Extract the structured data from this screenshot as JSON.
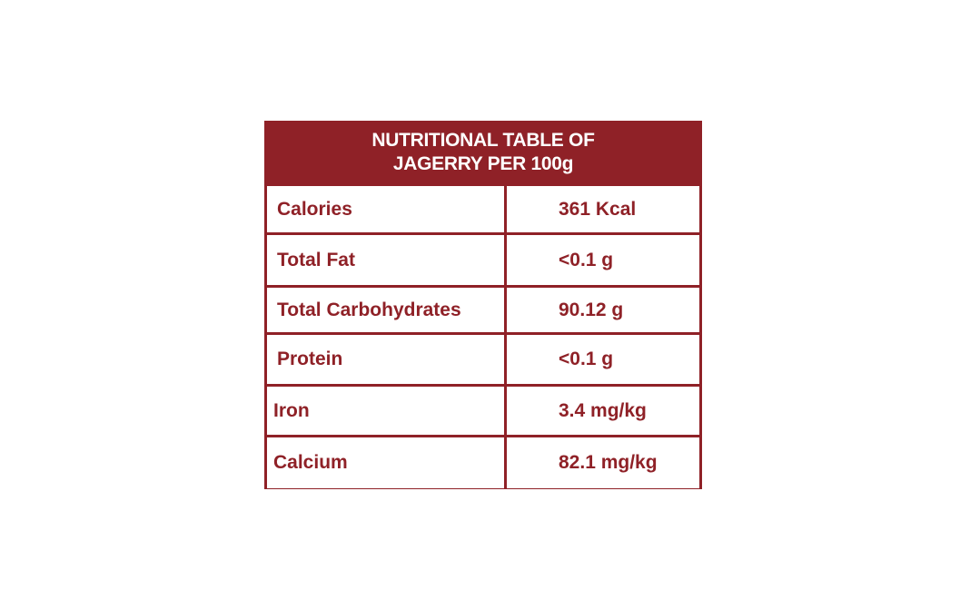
{
  "table": {
    "title_line1": "NUTRITIONAL TABLE OF",
    "title_line2": "JAGERRY PER 100g",
    "rows": [
      {
        "nutrient": "Calories",
        "value": "361 Kcal"
      },
      {
        "nutrient": "Total Fat",
        "value": "<0.1 g"
      },
      {
        "nutrient": "Total Carbohydrates",
        "value": "90.12 g"
      },
      {
        "nutrient": "Protein",
        "value": "<0.1 g"
      },
      {
        "nutrient": "Iron",
        "value": "3.4 mg/kg"
      },
      {
        "nutrient": "Calcium",
        "value": "82.1 mg/kg"
      }
    ]
  },
  "colors": {
    "accent": "#8f2127",
    "background": "#ffffff"
  }
}
